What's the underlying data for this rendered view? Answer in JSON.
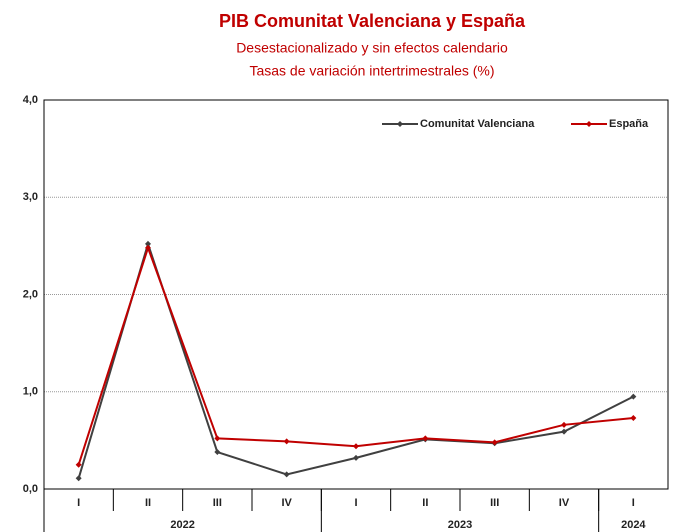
{
  "chart_data": {
    "type": "line",
    "title": "PIB Comunitat Valenciana y España",
    "subtitle": [
      "Desestacionalizado y sin efectos calendario",
      "Tasas de variación intertrimestrales (%)"
    ],
    "categories": [
      "I",
      "II",
      "III",
      "IV",
      "I",
      "II",
      "III",
      "IV",
      "I"
    ],
    "groups": [
      {
        "name": "2022",
        "count": 4
      },
      {
        "name": "2023",
        "count": 4
      },
      {
        "name": "2024",
        "count": 1
      }
    ],
    "series": [
      {
        "name": "Comunitat Valenciana",
        "color": "#404040",
        "values": [
          0.11,
          2.52,
          0.38,
          0.15,
          0.32,
          0.51,
          0.47,
          0.59,
          0.95
        ]
      },
      {
        "name": "España",
        "color": "#c00000",
        "values": [
          0.25,
          2.48,
          0.52,
          0.49,
          0.44,
          0.52,
          0.48,
          0.66,
          0.73
        ]
      }
    ],
    "ylim": [
      0,
      4
    ],
    "yticks": [
      {
        "value": 0,
        "label": "0,0"
      },
      {
        "value": 1,
        "label": "1,0"
      },
      {
        "value": 2,
        "label": "2,0"
      },
      {
        "value": 3,
        "label": "3,0"
      },
      {
        "value": 4,
        "label": "4,0"
      }
    ],
    "grid": true,
    "legend": "top-right"
  }
}
